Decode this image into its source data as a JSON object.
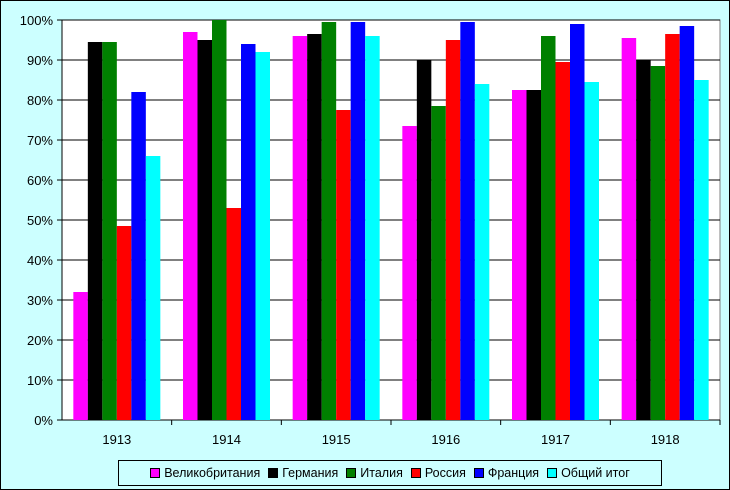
{
  "chart_data": {
    "type": "bar",
    "title": "",
    "xlabel": "",
    "ylabel": "",
    "categories": [
      "1913",
      "1914",
      "1915",
      "1916",
      "1917",
      "1918"
    ],
    "y_tick_labels": [
      "0%",
      "10%",
      "20%",
      "30%",
      "40%",
      "50%",
      "60%",
      "70%",
      "80%",
      "90%",
      "100%"
    ],
    "ylim": [
      0,
      100
    ],
    "grid": "horizontal major gridlines",
    "legend_position": "bottom",
    "series": [
      {
        "name": "Великобритания",
        "color": "#ff00ff",
        "values": [
          32,
          97,
          96,
          73.5,
          82.5,
          95.5
        ]
      },
      {
        "name": "Германия",
        "color": "#000000",
        "values": [
          94.5,
          95,
          96.5,
          90,
          82.5,
          90
        ]
      },
      {
        "name": "Италия",
        "color": "#008000",
        "values": [
          94.5,
          100,
          99.5,
          78.5,
          96,
          88.5
        ]
      },
      {
        "name": "Россия",
        "color": "#ff0000",
        "values": [
          48.5,
          53,
          77.5,
          95,
          89.5,
          96.5
        ]
      },
      {
        "name": "Франция",
        "color": "#0000ff",
        "values": [
          82,
          94,
          99.5,
          99.5,
          99,
          98.5
        ]
      },
      {
        "name": "Общий итог",
        "color": "#00ffff",
        "values": [
          66,
          92,
          96,
          84,
          84.5,
          85
        ]
      }
    ]
  }
}
